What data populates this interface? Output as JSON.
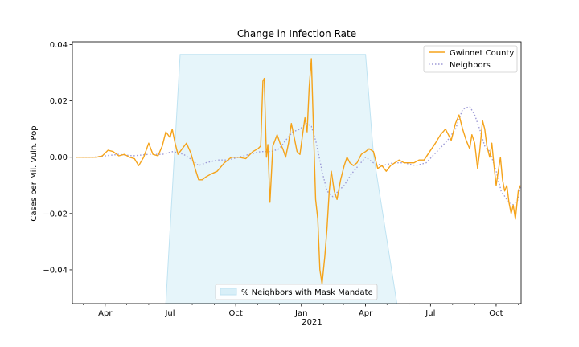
{
  "chart_data": {
    "type": "line",
    "title": "Change in Infection Rate",
    "xlabel": "",
    "ylabel": "Cases per Mil. Vuln. Pop",
    "ylim": [
      -0.052,
      0.041
    ],
    "xlim": [
      "2020-02-15",
      "2021-11-05"
    ],
    "y_ticks": [
      -0.04,
      -0.02,
      0.0,
      0.02,
      0.04
    ],
    "y_tick_labels": [
      "−0.04",
      "−0.02",
      "0.00",
      "0.02",
      "0.04"
    ],
    "x_ticks": [
      "2020-04-01",
      "2020-07-01",
      "2020-10-01",
      "2021-01-01",
      "2021-04-01",
      "2021-07-01",
      "2021-10-01"
    ],
    "x_tick_labels": [
      "Apr",
      "Jul",
      "Oct",
      "Jan",
      "Apr",
      "Jul",
      "Oct"
    ],
    "x_year_label": "2021",
    "grid": false,
    "colors": {
      "gwinnett": "#f5a31a",
      "neighbors": "#9d9ad6",
      "mask_fill": "#d8eff8",
      "mask_edge": "#bfe3f2"
    },
    "legend_top": {
      "placement": "top-right",
      "entries": [
        "Gwinnet County",
        "Neighbors"
      ]
    },
    "legend_bottom": {
      "placement": "bottom-center",
      "entries": [
        "% Neighbors with Mask Mandate"
      ]
    },
    "mask_mandate_area": {
      "x": [
        "2020-06-25",
        "2020-07-15",
        "2021-04-01",
        "2021-04-12",
        "2021-05-15"
      ],
      "y": [
        -0.052,
        0.0365,
        0.0365,
        0.001,
        -0.052
      ]
    },
    "series": [
      {
        "name": "Gwinnet County",
        "style": "solid",
        "x": [
          "2020-02-20",
          "2020-03-10",
          "2020-03-20",
          "2020-03-28",
          "2020-04-05",
          "2020-04-12",
          "2020-04-20",
          "2020-04-28",
          "2020-05-05",
          "2020-05-12",
          "2020-05-18",
          "2020-05-25",
          "2020-06-01",
          "2020-06-07",
          "2020-06-14",
          "2020-06-20",
          "2020-06-25",
          "2020-07-01",
          "2020-07-04",
          "2020-07-08",
          "2020-07-12",
          "2020-07-18",
          "2020-07-24",
          "2020-07-30",
          "2020-08-05",
          "2020-08-10",
          "2020-08-15",
          "2020-08-20",
          "2020-08-27",
          "2020-09-05",
          "2020-09-15",
          "2020-09-25",
          "2020-10-05",
          "2020-10-15",
          "2020-10-25",
          "2020-11-01",
          "2020-11-05",
          "2020-11-08",
          "2020-11-10",
          "2020-11-13",
          "2020-11-15",
          "2020-11-18",
          "2020-11-22",
          "2020-11-28",
          "2020-12-02",
          "2020-12-06",
          "2020-12-10",
          "2020-12-14",
          "2020-12-18",
          "2020-12-22",
          "2020-12-26",
          "2020-12-30",
          "2021-01-03",
          "2021-01-06",
          "2021-01-09",
          "2021-01-12",
          "2021-01-15",
          "2021-01-18",
          "2021-01-21",
          "2021-01-24",
          "2021-01-27",
          "2021-01-30",
          "2021-02-03",
          "2021-02-06",
          "2021-02-09",
          "2021-02-12",
          "2021-02-16",
          "2021-02-20",
          "2021-02-25",
          "2021-03-02",
          "2021-03-06",
          "2021-03-10",
          "2021-03-15",
          "2021-03-20",
          "2021-03-26",
          "2021-04-01",
          "2021-04-06",
          "2021-04-12",
          "2021-04-18",
          "2021-04-24",
          "2021-04-30",
          "2021-05-06",
          "2021-05-12",
          "2021-05-18",
          "2021-05-25",
          "2021-06-01",
          "2021-06-08",
          "2021-06-15",
          "2021-06-22",
          "2021-06-30",
          "2021-07-08",
          "2021-07-15",
          "2021-07-22",
          "2021-07-30",
          "2021-08-05",
          "2021-08-10",
          "2021-08-15",
          "2021-08-20",
          "2021-08-25",
          "2021-08-28",
          "2021-09-01",
          "2021-09-05",
          "2021-09-08",
          "2021-09-12",
          "2021-09-15",
          "2021-09-18",
          "2021-09-22",
          "2021-09-25",
          "2021-09-28",
          "2021-10-01",
          "2021-10-04",
          "2021-10-07",
          "2021-10-10",
          "2021-10-13",
          "2021-10-16",
          "2021-10-19",
          "2021-10-22",
          "2021-10-25",
          "2021-10-28",
          "2021-11-01",
          "2021-11-04"
        ],
        "y": [
          0.0,
          0.0,
          0.0,
          0.0005,
          0.0025,
          0.002,
          0.0005,
          0.001,
          0.0,
          -0.0005,
          -0.003,
          0.0,
          0.005,
          0.001,
          0.0005,
          0.004,
          0.009,
          0.007,
          0.01,
          0.005,
          0.001,
          0.003,
          0.005,
          0.0015,
          -0.004,
          -0.008,
          -0.008,
          -0.007,
          -0.006,
          -0.005,
          -0.002,
          0.0,
          0.0,
          -0.0005,
          0.002,
          0.003,
          0.004,
          0.027,
          0.028,
          0.0,
          0.0045,
          -0.016,
          0.004,
          0.008,
          0.005,
          0.003,
          0.0,
          0.005,
          0.012,
          0.007,
          0.002,
          0.001,
          0.0085,
          0.014,
          0.009,
          0.025,
          0.035,
          0.01,
          -0.015,
          -0.022,
          -0.04,
          -0.045,
          -0.035,
          -0.025,
          -0.012,
          -0.005,
          -0.012,
          -0.015,
          -0.008,
          -0.003,
          0.0,
          -0.002,
          -0.003,
          -0.002,
          0.001,
          0.002,
          0.003,
          0.002,
          -0.004,
          -0.003,
          -0.005,
          -0.003,
          -0.002,
          -0.001,
          -0.002,
          -0.002,
          -0.002,
          -0.001,
          -0.001,
          0.002,
          0.005,
          0.008,
          0.01,
          0.006,
          0.012,
          0.015,
          0.01,
          0.006,
          0.003,
          0.008,
          0.005,
          -0.004,
          0.002,
          0.013,
          0.01,
          0.004,
          0.0,
          0.005,
          -0.003,
          -0.01,
          -0.005,
          0.0,
          -0.008,
          -0.012,
          -0.01,
          -0.016,
          -0.02,
          -0.017,
          -0.022,
          -0.012,
          -0.01
        ]
      },
      {
        "name": "Neighbors",
        "style": "dotted",
        "x": [
          "2020-02-20",
          "2020-03-15",
          "2020-04-01",
          "2020-04-20",
          "2020-05-10",
          "2020-06-01",
          "2020-06-20",
          "2020-07-05",
          "2020-07-20",
          "2020-08-01",
          "2020-08-10",
          "2020-08-20",
          "2020-09-05",
          "2020-09-20",
          "2020-10-05",
          "2020-10-20",
          "2020-11-05",
          "2020-11-20",
          "2020-12-01",
          "2020-12-10",
          "2020-12-20",
          "2020-12-30",
          "2021-01-08",
          "2021-01-15",
          "2021-01-22",
          "2021-01-30",
          "2021-02-06",
          "2021-02-14",
          "2021-02-22",
          "2021-03-02",
          "2021-03-12",
          "2021-03-22",
          "2021-04-01",
          "2021-04-12",
          "2021-04-25",
          "2021-05-10",
          "2021-05-25",
          "2021-06-10",
          "2021-06-25",
          "2021-07-10",
          "2021-07-25",
          "2021-08-05",
          "2021-08-15",
          "2021-08-25",
          "2021-09-01",
          "2021-09-08",
          "2021-09-15",
          "2021-09-22",
          "2021-09-30",
          "2021-10-08",
          "2021-10-16",
          "2021-10-24",
          "2021-11-01",
          "2021-11-04"
        ],
        "y": [
          0.0,
          0.0,
          0.0005,
          0.001,
          0.0005,
          0.001,
          0.001,
          0.002,
          0.001,
          -0.001,
          -0.003,
          -0.002,
          -0.001,
          -0.001,
          0.0,
          0.001,
          0.002,
          0.002,
          0.003,
          0.006,
          0.009,
          0.01,
          0.012,
          0.011,
          0.005,
          -0.005,
          -0.012,
          -0.014,
          -0.012,
          -0.01,
          -0.006,
          -0.003,
          0.0,
          -0.002,
          -0.003,
          -0.002,
          -0.002,
          -0.003,
          -0.002,
          0.002,
          0.006,
          0.01,
          0.017,
          0.018,
          0.015,
          0.01,
          0.004,
          0.002,
          -0.004,
          -0.012,
          -0.015,
          -0.017,
          -0.015,
          -0.01
        ]
      }
    ]
  }
}
